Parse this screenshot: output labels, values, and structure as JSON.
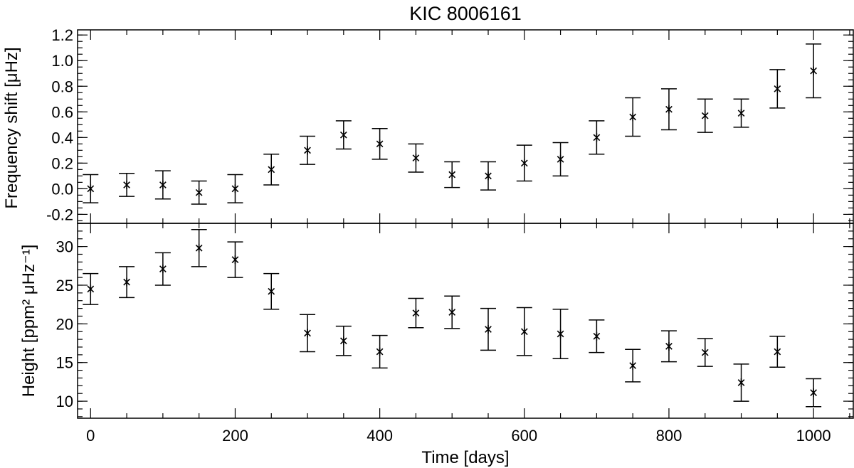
{
  "chart_data": {
    "type": "scatter",
    "title": "KIC 8006161",
    "xlabel": "Time [days]",
    "xlim": [
      -18,
      1055
    ],
    "xticks": [
      0,
      200,
      400,
      600,
      800,
      1000
    ],
    "x": [
      0,
      50,
      100,
      150,
      200,
      250,
      300,
      350,
      400,
      450,
      500,
      550,
      600,
      650,
      700,
      750,
      800,
      850,
      900,
      950,
      1000
    ],
    "panels": [
      {
        "ylabel": "Frequency shift [μHz]",
        "ylim": [
          -0.27,
          1.24
        ],
        "yticks": [
          -0.2,
          0.0,
          0.2,
          0.4,
          0.6,
          0.8,
          1.0,
          1.2
        ],
        "ytick_labels": [
          "-0.2",
          "0.0",
          "0.2",
          "0.4",
          "0.6",
          "0.8",
          "1.0",
          "1.2"
        ],
        "marker": "asterisk",
        "values": [
          0.0,
          0.03,
          0.03,
          -0.03,
          0.0,
          0.15,
          0.3,
          0.42,
          0.35,
          0.24,
          0.11,
          0.1,
          0.2,
          0.23,
          0.4,
          0.56,
          0.62,
          0.57,
          0.59,
          0.78,
          0.92
        ],
        "errors": [
          0.11,
          0.09,
          0.11,
          0.09,
          0.11,
          0.12,
          0.11,
          0.11,
          0.12,
          0.11,
          0.1,
          0.11,
          0.14,
          0.13,
          0.13,
          0.15,
          0.16,
          0.13,
          0.11,
          0.15,
          0.21
        ]
      },
      {
        "ylabel": "Height [ppm² μHz⁻¹]",
        "ylim": [
          7.8,
          33.0
        ],
        "yticks": [
          10,
          15,
          20,
          25,
          30
        ],
        "ytick_labels": [
          "10",
          "15",
          "20",
          "25",
          "30"
        ],
        "marker": "asterisk",
        "values": [
          24.5,
          25.4,
          27.1,
          29.8,
          28.3,
          24.2,
          18.8,
          17.8,
          16.4,
          21.4,
          21.5,
          19.3,
          19.0,
          18.7,
          18.4,
          14.6,
          17.1,
          16.3,
          12.4,
          16.4,
          11.1
        ],
        "errors": [
          2.0,
          2.0,
          2.1,
          2.4,
          2.3,
          2.3,
          2.4,
          1.9,
          2.1,
          1.9,
          2.1,
          2.7,
          3.1,
          3.2,
          2.1,
          2.1,
          2.0,
          1.8,
          2.4,
          2.0,
          1.8
        ]
      }
    ]
  }
}
